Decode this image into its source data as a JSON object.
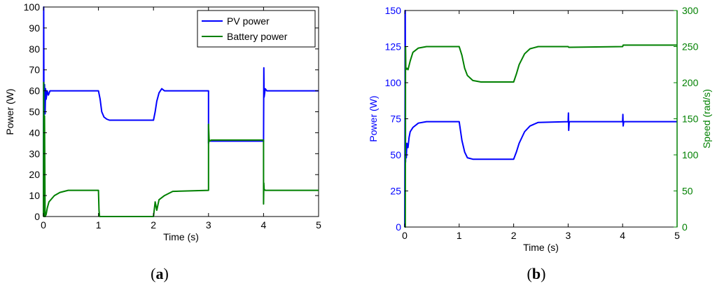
{
  "chart_data": [
    {
      "type": "line",
      "caption": "(a)",
      "xlabel": "Time (s)",
      "ylabel": "Power (W)",
      "xlim": [
        0,
        5
      ],
      "ylim": [
        0,
        100
      ],
      "xticks": [
        "0",
        "1",
        "2",
        "3",
        "4",
        "5"
      ],
      "yticks": [
        "0",
        "10",
        "20",
        "30",
        "40",
        "50",
        "60",
        "70",
        "80",
        "90",
        "100"
      ],
      "grid": false,
      "legend_position": "top-right",
      "series": [
        {
          "name": "PV power",
          "color": "#0000ff",
          "x": [
            0,
            0.005,
            0.01,
            0.02,
            0.03,
            0.04,
            0.05,
            0.07,
            0.09,
            0.12,
            0.2,
            1.0,
            1.03,
            1.06,
            1.1,
            1.15,
            1.2,
            1.4,
            2.0,
            2.03,
            2.06,
            2.1,
            2.15,
            2.2,
            2.3,
            3.0,
            3.0,
            3.01,
            3.02,
            3.5,
            3.99,
            4.0,
            4.005,
            4.01,
            4.03,
            4.06,
            4.1,
            4.5,
            5.0
          ],
          "y": [
            0,
            100,
            47,
            63,
            49,
            61,
            56,
            60,
            58,
            60,
            60,
            60,
            56,
            50,
            47.5,
            46.5,
            46,
            46,
            46,
            50,
            55,
            59,
            61,
            60,
            60,
            60,
            35,
            36.5,
            36,
            36,
            36,
            36,
            71,
            57,
            61,
            60,
            60,
            60,
            60
          ]
        },
        {
          "name": "Battery power",
          "color": "#008000",
          "x": [
            0,
            0.005,
            0.01,
            0.02,
            0.03,
            0.05,
            0.07,
            0.1,
            0.2,
            0.3,
            0.45,
            1.0,
            1.01,
            1.02,
            2.0,
            2.03,
            2.06,
            2.1,
            2.2,
            2.35,
            3.0,
            3.0,
            3.01,
            3.02,
            3.05,
            4.0,
            4.0,
            4.005,
            4.01,
            4.03,
            4.06,
            4.1,
            5.0
          ],
          "y": [
            0,
            64,
            0,
            48,
            0,
            1,
            4,
            7,
            10,
            11.5,
            12.5,
            12.5,
            3,
            0,
            0,
            7,
            3,
            8,
            10,
            12,
            12.5,
            44,
            37,
            36,
            36.5,
            36.5,
            6,
            16,
            13,
            12.5,
            12.5,
            12.5,
            12.5
          ]
        }
      ]
    },
    {
      "type": "line",
      "caption": "(b)",
      "xlabel": "Time (s)",
      "ylabel": "Power (W)",
      "ylabel_right": "Speed (rad/s)",
      "xlim": [
        0,
        5
      ],
      "ylim": [
        0,
        150
      ],
      "ylim_right": [
        0,
        300
      ],
      "xticks": [
        "0",
        "1",
        "2",
        "3",
        "4",
        "5"
      ],
      "yticks": [
        "0",
        "25",
        "50",
        "75",
        "100",
        "125",
        "150"
      ],
      "yticks_right": [
        "0",
        "50",
        "100",
        "150",
        "200",
        "250",
        "300"
      ],
      "grid": false,
      "series": [
        {
          "axis": "left",
          "color": "#0000ff",
          "x": [
            0,
            0.01,
            0.015,
            0.02,
            0.03,
            0.04,
            0.06,
            0.08,
            0.1,
            0.15,
            0.25,
            0.4,
            1.0,
            1.05,
            1.1,
            1.15,
            1.25,
            1.5,
            2.0,
            2.05,
            2.1,
            2.2,
            2.3,
            2.45,
            3.0,
            3.005,
            3.01,
            3.02,
            3.5,
            4.0,
            4.005,
            4.01,
            4.02,
            5.0
          ],
          "y": [
            0,
            150,
            45,
            55,
            48,
            58,
            55,
            62,
            66,
            69,
            72,
            73,
            73,
            60,
            52,
            48,
            47,
            47,
            47,
            52,
            58,
            66,
            70,
            72.5,
            73,
            79,
            67,
            73,
            73,
            73,
            78,
            70,
            73,
            73
          ]
        },
        {
          "axis": "right",
          "color": "#008000",
          "x": [
            0,
            0.01,
            0.015,
            0.02,
            0.04,
            0.06,
            0.1,
            0.15,
            0.25,
            0.4,
            1.0,
            1.05,
            1.1,
            1.15,
            1.25,
            1.4,
            2.0,
            2.05,
            2.1,
            2.2,
            2.3,
            2.45,
            3.0,
            3.01,
            4.0,
            4.01,
            5.0
          ],
          "y": [
            0,
            0,
            250,
            218,
            220,
            218,
            230,
            242,
            248,
            250,
            250,
            238,
            220,
            210,
            203,
            201,
            201,
            212,
            225,
            240,
            247,
            250,
            250,
            249,
            250,
            252,
            252
          ]
        }
      ]
    }
  ]
}
